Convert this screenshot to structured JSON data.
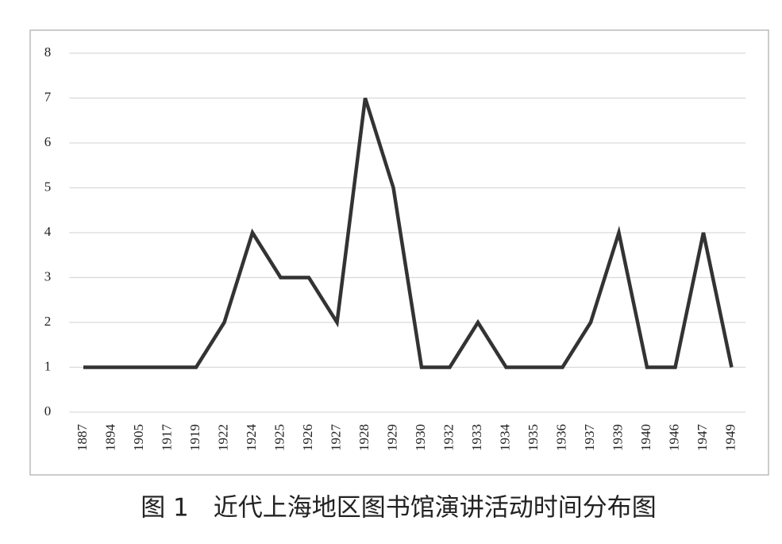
{
  "chart_data": {
    "type": "line",
    "caption": "图 1　近代上海地区图书馆演讲活动时间分布图",
    "categories": [
      "1887",
      "1894",
      "1905",
      "1917",
      "1919",
      "1922",
      "1924",
      "1925",
      "1926",
      "1927",
      "1928",
      "1929",
      "1930",
      "1932",
      "1933",
      "1934",
      "1935",
      "1936",
      "1937",
      "1939",
      "1940",
      "1946",
      "1947",
      "1949"
    ],
    "values": [
      1,
      1,
      1,
      1,
      1,
      2,
      4,
      3,
      3,
      2,
      7,
      5,
      1,
      1,
      2,
      1,
      1,
      1,
      2,
      4,
      1,
      1,
      4,
      1
    ],
    "color": "#333333",
    "ylim": [
      0,
      8
    ],
    "yticks": [
      0,
      1,
      2,
      3,
      4,
      5,
      6,
      7,
      8
    ],
    "grid": true
  }
}
